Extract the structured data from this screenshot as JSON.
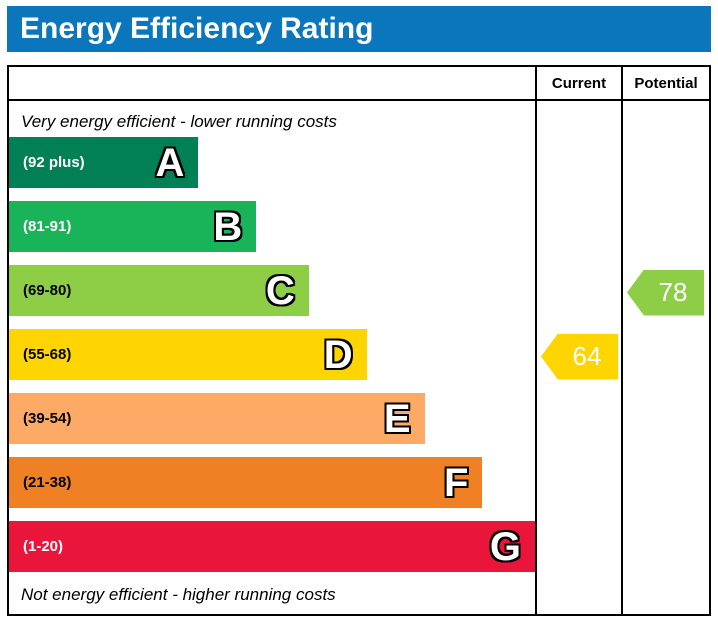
{
  "title": "Energy Efficiency Rating",
  "colors": {
    "title_bar": "#0b76bc"
  },
  "header": {
    "current_label": "Current",
    "potential_label": "Potential"
  },
  "notes": {
    "top": "Very energy efficient - lower running costs",
    "bottom": "Not energy efficient - higher running costs"
  },
  "chart_data": {
    "type": "bar",
    "title": "Energy Efficiency Rating",
    "categories": [
      "A",
      "B",
      "C",
      "D",
      "E",
      "F",
      "G"
    ],
    "bands": [
      {
        "letter": "A",
        "range": "(92 plus)",
        "color": "#008054",
        "label_color": "#ffffff",
        "width_pct": 36
      },
      {
        "letter": "B",
        "range": "(81-91)",
        "color": "#19b459",
        "label_color": "#ffffff",
        "width_pct": 47
      },
      {
        "letter": "C",
        "range": "(69-80)",
        "color": "#8dce46",
        "label_color": "#000000",
        "width_pct": 57
      },
      {
        "letter": "D",
        "range": "(55-68)",
        "color": "#ffd500",
        "label_color": "#000000",
        "width_pct": 68
      },
      {
        "letter": "E",
        "range": "(39-54)",
        "color": "#fcaa65",
        "label_color": "#000000",
        "width_pct": 79
      },
      {
        "letter": "F",
        "range": "(21-38)",
        "color": "#ef8023",
        "label_color": "#000000",
        "width_pct": 90
      },
      {
        "letter": "G",
        "range": "(1-20)",
        "color": "#e9153b",
        "label_color": "#ffffff",
        "width_pct": 100
      }
    ],
    "current": {
      "value": "64",
      "band": "D",
      "color": "#ffd500"
    },
    "potential": {
      "value": "78",
      "band": "C",
      "color": "#8dce46"
    }
  }
}
